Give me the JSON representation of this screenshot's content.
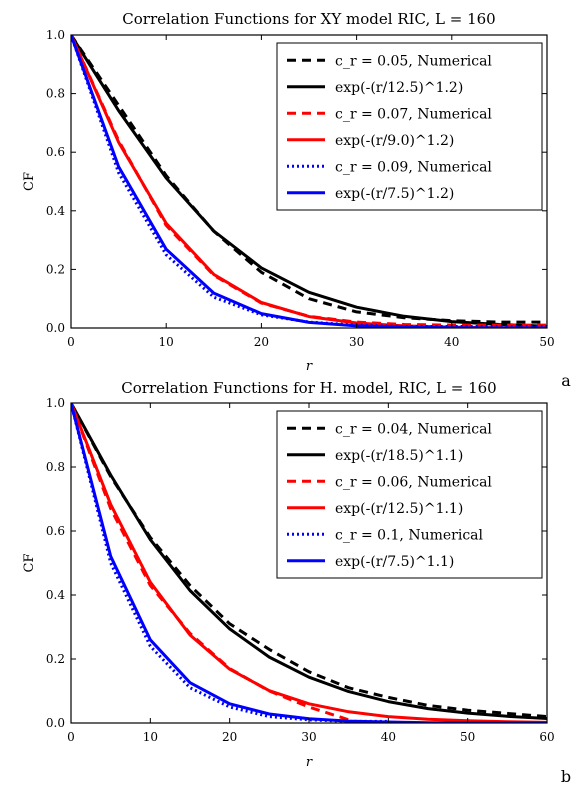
{
  "chart_data": [
    {
      "type": "line",
      "panel_label": "a",
      "title": "Correlation Functions for XY model RIC, L = 160",
      "xlabel": "r",
      "ylabel": "CF",
      "xlim": [
        0,
        50
      ],
      "ylim": [
        0,
        1.0
      ],
      "xticks": [
        "0",
        "10",
        "20",
        "30",
        "40",
        "50"
      ],
      "yticks": [
        "0.0",
        "0.2",
        "0.4",
        "0.6",
        "0.8",
        "1.0"
      ],
      "grid": false,
      "legend_position": "top-right",
      "series": [
        {
          "name": "c_r = 0.05, Numerical",
          "color": "#000000",
          "style": "dashed",
          "x": [
            0,
            5,
            10,
            15,
            20,
            25,
            30,
            35,
            40,
            45,
            50
          ],
          "values": [
            1.0,
            0.76,
            0.52,
            0.33,
            0.19,
            0.1,
            0.055,
            0.035,
            0.025,
            0.02,
            0.02
          ]
        },
        {
          "name": "exp(-(r/12.5)^1.2)",
          "color": "#000000",
          "style": "solid",
          "x": [
            0,
            5,
            10,
            15,
            20,
            25,
            30,
            35,
            40,
            45,
            50
          ],
          "values": [
            1.0,
            0.742,
            0.512,
            0.331,
            0.205,
            0.122,
            0.071,
            0.04,
            0.022,
            0.012,
            0.006
          ]
        },
        {
          "name": "c_r = 0.07, Numerical",
          "color": "#ff0000",
          "style": "dashed",
          "x": [
            0,
            5,
            10,
            15,
            20,
            25,
            30,
            35,
            40,
            45,
            50
          ],
          "values": [
            1.0,
            0.64,
            0.35,
            0.18,
            0.085,
            0.04,
            0.02,
            0.012,
            0.01,
            0.01,
            0.01
          ]
        },
        {
          "name": "exp(-(r/9.0)^1.2)",
          "color": "#ff0000",
          "style": "solid",
          "x": [
            0,
            5,
            10,
            15,
            20,
            25,
            30,
            35,
            40,
            45,
            50
          ],
          "values": [
            1.0,
            0.634,
            0.357,
            0.183,
            0.087,
            0.039,
            0.017,
            0.007,
            0.003,
            0.001,
            0.0
          ]
        },
        {
          "name": "c_r = 0.09, Numerical",
          "color": "#0000ff",
          "style": "dotted",
          "x": [
            0,
            5,
            10,
            15,
            20,
            25,
            30,
            35,
            40,
            45,
            50
          ],
          "values": [
            1.0,
            0.53,
            0.25,
            0.105,
            0.045,
            0.02,
            0.01,
            0.005,
            0.005,
            0.005,
            0.005
          ]
        },
        {
          "name": "exp(-(r/7.5)^1.2)",
          "color": "#0000ff",
          "style": "solid",
          "x": [
            0,
            5,
            10,
            15,
            20,
            25,
            30,
            35,
            40,
            45,
            50
          ],
          "values": [
            1.0,
            0.551,
            0.269,
            0.119,
            0.049,
            0.019,
            0.007,
            0.003,
            0.001,
            0.0,
            0.0
          ]
        }
      ]
    },
    {
      "type": "line",
      "panel_label": "b",
      "title": "Correlation Functions for H. model, RIC, L = 160",
      "xlabel": "r",
      "ylabel": "CF",
      "xlim": [
        0,
        60
      ],
      "ylim": [
        0,
        1.0
      ],
      "xticks": [
        "0",
        "10",
        "20",
        "30",
        "40",
        "50",
        "60"
      ],
      "yticks": [
        "0.0",
        "0.2",
        "0.4",
        "0.6",
        "0.8",
        "1.0"
      ],
      "grid": false,
      "legend_position": "top-right",
      "series": [
        {
          "name": "c_r = 0.04, Numerical",
          "color": "#000000",
          "style": "dashed",
          "x": [
            0,
            5,
            10,
            15,
            20,
            25,
            30,
            35,
            40,
            45,
            50,
            55,
            60
          ],
          "values": [
            1.0,
            0.77,
            0.58,
            0.43,
            0.31,
            0.23,
            0.16,
            0.11,
            0.08,
            0.055,
            0.04,
            0.03,
            0.02
          ]
        },
        {
          "name": "exp(-(r/18.5)^1.1)",
          "color": "#000000",
          "style": "solid",
          "x": [
            0,
            5,
            10,
            15,
            20,
            25,
            30,
            35,
            40,
            45,
            50,
            55,
            60
          ],
          "values": [
            1.0,
            0.775,
            0.573,
            0.414,
            0.294,
            0.206,
            0.143,
            0.098,
            0.067,
            0.045,
            0.031,
            0.021,
            0.014
          ]
        },
        {
          "name": "c_r = 0.06, Numerical",
          "color": "#ff0000",
          "style": "dashed",
          "x": [
            0,
            5,
            10,
            15,
            20,
            25,
            30,
            35
          ],
          "values": [
            1.0,
            0.67,
            0.43,
            0.28,
            0.17,
            0.1,
            0.05,
            0.01
          ]
        },
        {
          "name": "exp(-(r/12.5)^1.1)",
          "color": "#ff0000",
          "style": "solid",
          "x": [
            0,
            5,
            10,
            15,
            20,
            25,
            30,
            35,
            40,
            45,
            50,
            55,
            60
          ],
          "values": [
            1.0,
            0.683,
            0.44,
            0.275,
            0.168,
            0.101,
            0.06,
            0.035,
            0.02,
            0.012,
            0.007,
            0.004,
            0.002
          ]
        },
        {
          "name": "c_r = 0.1, Numerical",
          "color": "#0000ff",
          "style": "dotted",
          "x": [
            0,
            5,
            10,
            15,
            20,
            25,
            30,
            35,
            40
          ],
          "values": [
            1.0,
            0.5,
            0.24,
            0.11,
            0.05,
            0.02,
            0.01,
            0.005,
            0.005
          ]
        },
        {
          "name": "exp(-(r/7.5)^1.1)",
          "color": "#0000ff",
          "style": "solid",
          "x": [
            0,
            5,
            10,
            15,
            20,
            25,
            30,
            35,
            40,
            45,
            50,
            55,
            60
          ],
          "values": [
            1.0,
            0.521,
            0.26,
            0.126,
            0.06,
            0.028,
            0.013,
            0.006,
            0.003,
            0.001,
            0.0,
            0.0,
            0.0
          ]
        }
      ]
    }
  ]
}
